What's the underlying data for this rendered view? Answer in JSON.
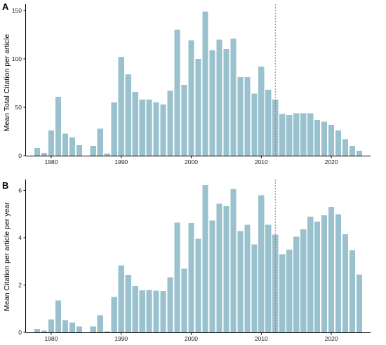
{
  "colors": {
    "bar": "#9ac1ce",
    "reference_line": "#e8574f",
    "axis": "#000000"
  },
  "chart_data": [
    {
      "panel": "A",
      "type": "bar",
      "ylabel": "Mean Total Citation per article",
      "xlabel": "",
      "xlim": [
        1976.4,
        2025.6
      ],
      "ylim": [
        0,
        155
      ],
      "x_ticks": [
        1980,
        1990,
        2000,
        2010,
        2020
      ],
      "y_ticks": [
        0,
        50,
        100,
        150
      ],
      "reference_line_x": 2012,
      "grid": false,
      "x": [
        1978,
        1979,
        1980,
        1981,
        1982,
        1983,
        1984,
        1985,
        1986,
        1987,
        1988,
        1989,
        1990,
        1991,
        1992,
        1993,
        1994,
        1995,
        1996,
        1997,
        1998,
        1999,
        2000,
        2001,
        2002,
        2003,
        2004,
        2005,
        2006,
        2007,
        2008,
        2009,
        2010,
        2011,
        2012,
        2013,
        2014,
        2015,
        2016,
        2017,
        2018,
        2019,
        2020,
        2021,
        2022,
        2023,
        2024
      ],
      "values": [
        8,
        3,
        26,
        61,
        23,
        19,
        11,
        0,
        10,
        28,
        2,
        55,
        102,
        84,
        66,
        58,
        58,
        55,
        53,
        67,
        130,
        73,
        119,
        100,
        149,
        109,
        120,
        110,
        121,
        81,
        81,
        64,
        92,
        68,
        58,
        43,
        42,
        44,
        44,
        44,
        37,
        35,
        32,
        26,
        17,
        10,
        5
      ]
    },
    {
      "panel": "B",
      "type": "bar",
      "ylabel": "Mean Citation per article per year",
      "xlabel": "",
      "xlim": [
        1976.4,
        2025.6
      ],
      "ylim": [
        0,
        6.4
      ],
      "x_ticks": [
        1980,
        1990,
        2000,
        2010,
        2020
      ],
      "y_ticks": [
        0,
        2,
        4,
        6
      ],
      "reference_line_x": 2012,
      "grid": false,
      "x": [
        1978,
        1979,
        1980,
        1981,
        1982,
        1983,
        1984,
        1985,
        1986,
        1987,
        1988,
        1989,
        1990,
        1991,
        1992,
        1993,
        1994,
        1995,
        1996,
        1997,
        1998,
        1999,
        2000,
        2001,
        2002,
        2003,
        2004,
        2005,
        2006,
        2007,
        2008,
        2009,
        2010,
        2011,
        2012,
        2013,
        2014,
        2015,
        2016,
        2017,
        2018,
        2019,
        2020,
        2021,
        2022,
        2023,
        2024
      ],
      "values": [
        0.15,
        0.08,
        0.55,
        1.35,
        0.52,
        0.42,
        0.25,
        0,
        0.25,
        0.72,
        0.05,
        1.5,
        2.83,
        2.43,
        1.96,
        1.78,
        1.8,
        1.77,
        1.75,
        2.32,
        4.63,
        2.7,
        4.62,
        3.96,
        6.22,
        4.72,
        5.44,
        5.34,
        6.06,
        4.28,
        4.55,
        3.72,
        5.8,
        4.55,
        4.14,
        3.3,
        3.5,
        4.04,
        4.35,
        4.89,
        4.68,
        4.95,
        5.3,
        5.0,
        4.15,
        3.46,
        2.45
      ]
    }
  ]
}
